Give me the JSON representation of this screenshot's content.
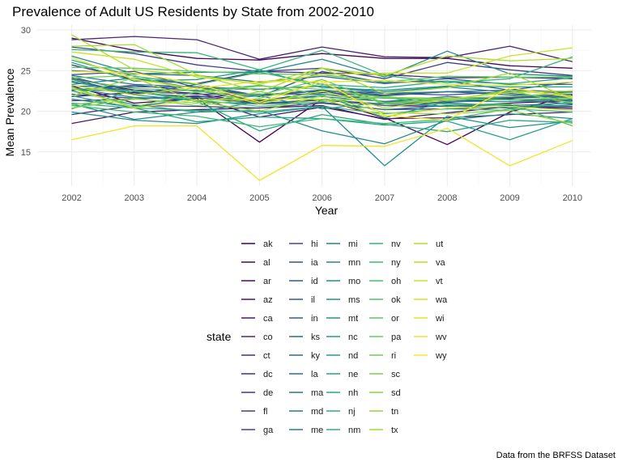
{
  "chart_data": {
    "type": "line",
    "title": "Prevalence of Adult US Residents by State from 2002-2010",
    "xlabel": "Year",
    "ylabel": "Mean Prevalence",
    "x": [
      2002,
      2003,
      2004,
      2005,
      2006,
      2007,
      2008,
      2009,
      2010
    ],
    "x_tick_labels": [
      "2002",
      "2003",
      "2004",
      "2005",
      "2006",
      "2007",
      "2008",
      "2009",
      "2010"
    ],
    "y_ticks": [
      15,
      20,
      25,
      30
    ],
    "y_tick_labels": [
      "15",
      "20",
      "25",
      "30"
    ],
    "xlim": [
      2001.45,
      2010.3
    ],
    "ylim": [
      10.8,
      30.6
    ],
    "grid": true,
    "legend_title": "state",
    "legend_position": "bottom",
    "caption": "Data from the BRFSS Dataset",
    "series": [
      {
        "name": "ak",
        "values": [
          23.1,
          21.0,
          21.6,
          16.2,
          21.5,
          19.2,
          15.9,
          19.9,
          22.0
        ]
      },
      {
        "name": "al",
        "values": [
          29.0,
          27.5,
          26.5,
          26.3,
          27.1,
          26.5,
          26.5,
          25.6,
          25.3
        ]
      },
      {
        "name": "ar",
        "values": [
          24.0,
          22.6,
          22.2,
          20.9,
          21.4,
          20.7,
          20.6,
          21.0,
          21.3
        ]
      },
      {
        "name": "az",
        "values": [
          18.5,
          19.9,
          20.2,
          20.4,
          20.7,
          19.0,
          19.8,
          20.6,
          20.3
        ]
      },
      {
        "name": "ca",
        "values": [
          21.8,
          22.3,
          21.7,
          19.3,
          20.5,
          19.1,
          19.2,
          19.6,
          19.9
        ]
      },
      {
        "name": "co",
        "values": [
          28.8,
          29.2,
          28.8,
          26.4,
          27.9,
          26.7,
          26.6,
          28.0,
          26.1
        ]
      },
      {
        "name": "ct",
        "values": [
          25.7,
          23.9,
          23.4,
          24.9,
          24.7,
          24.5,
          24.1,
          24.2,
          24.0
        ]
      },
      {
        "name": "dc",
        "values": [
          21.3,
          21.5,
          21.9,
          21.0,
          21.4,
          20.9,
          21.1,
          21.5,
          20.9
        ]
      },
      {
        "name": "de",
        "values": [
          19.6,
          20.7,
          20.6,
          20.4,
          21.0,
          20.2,
          20.3,
          20.6,
          20.5
        ]
      },
      {
        "name": "fl",
        "values": [
          22.6,
          23.2,
          22.5,
          21.3,
          22.3,
          21.8,
          21.2,
          21.6,
          21.9
        ]
      },
      {
        "name": "ga",
        "values": [
          27.9,
          27.1,
          25.7,
          24.9,
          25.3,
          24.0,
          26.0,
          25.1,
          24.4
        ]
      },
      {
        "name": "hi",
        "values": [
          22.1,
          21.6,
          21.8,
          22.0,
          22.6,
          22.2,
          22.0,
          22.4,
          22.3
        ]
      },
      {
        "name": "ia",
        "values": [
          23.9,
          22.1,
          23.3,
          21.9,
          22.5,
          21.1,
          21.1,
          21.7,
          22.1
        ]
      },
      {
        "name": "id",
        "values": [
          24.5,
          24.9,
          22.9,
          21.8,
          24.9,
          23.5,
          23.7,
          22.6,
          23.6
        ]
      },
      {
        "name": "il",
        "values": [
          24.2,
          22.4,
          22.6,
          21.1,
          22.5,
          21.9,
          22.4,
          22.2,
          21.5
        ]
      },
      {
        "name": "in",
        "values": [
          23.1,
          23.0,
          23.0,
          21.9,
          22.6,
          22.0,
          22.4,
          22.0,
          21.7
        ]
      },
      {
        "name": "ks",
        "values": [
          23.6,
          22.4,
          22.1,
          22.1,
          22.1,
          21.2,
          21.8,
          21.4,
          21.4
        ]
      },
      {
        "name": "ky",
        "values": [
          25.0,
          24.6,
          24.4,
          23.6,
          24.3,
          23.4,
          24.0,
          23.3,
          23.3
        ]
      },
      {
        "name": "la",
        "values": [
          21.5,
          20.5,
          21.7,
          20.9,
          21.5,
          20.7,
          21.0,
          20.7,
          21.0
        ]
      },
      {
        "name": "ma",
        "values": [
          22.6,
          22.5,
          21.2,
          20.9,
          21.1,
          20.2,
          20.7,
          20.4,
          20.8
        ]
      },
      {
        "name": "md",
        "values": [
          24.4,
          23.3,
          23.0,
          22.7,
          23.1,
          22.2,
          22.4,
          22.6,
          22.4
        ]
      },
      {
        "name": "me",
        "values": [
          22.8,
          21.7,
          21.4,
          21.4,
          21.8,
          21.2,
          21.4,
          21.7,
          21.9
        ]
      },
      {
        "name": "mi",
        "values": [
          23.3,
          24.1,
          22.8,
          22.7,
          23.1,
          22.4,
          23.0,
          22.3,
          22.5
        ]
      },
      {
        "name": "mn",
        "values": [
          26.8,
          24.6,
          24.8,
          24.8,
          26.4,
          24.2,
          27.4,
          24.6,
          24.3
        ]
      },
      {
        "name": "mo",
        "values": [
          20.9,
          19.0,
          19.9,
          20.1,
          17.6,
          16.0,
          18.9,
          19.7,
          19.1
        ]
      },
      {
        "name": "ms",
        "values": [
          19.9,
          18.9,
          18.5,
          19.7,
          20.6,
          13.3,
          19.4,
          18.0,
          18.8
        ]
      },
      {
        "name": "mt",
        "values": [
          22.5,
          20.8,
          19.9,
          21.2,
          22.0,
          19.2,
          21.2,
          21.2,
          21.3
        ]
      },
      {
        "name": "nc",
        "values": [
          23.7,
          22.0,
          21.3,
          21.9,
          20.3,
          21.1,
          20.6,
          20.8,
          20.6
        ]
      },
      {
        "name": "nd",
        "values": [
          26.0,
          23.7,
          23.9,
          25.1,
          22.9,
          22.6,
          23.1,
          23.0,
          23.0
        ]
      },
      {
        "name": "ne",
        "values": [
          21.9,
          20.4,
          18.7,
          19.3,
          19.1,
          18.3,
          18.8,
          16.5,
          19.1
        ]
      },
      {
        "name": "nh",
        "values": [
          20.3,
          22.6,
          21.2,
          17.6,
          19.6,
          18.4,
          17.5,
          18.9,
          18.6
        ]
      },
      {
        "name": "nj",
        "values": [
          26.3,
          24.3,
          23.3,
          24.8,
          23.3,
          22.9,
          23.7,
          23.4,
          24.1
        ]
      },
      {
        "name": "nm",
        "values": [
          21.0,
          20.4,
          20.1,
          19.9,
          20.6,
          19.7,
          20.3,
          20.1,
          21.2
        ]
      },
      {
        "name": "nv",
        "values": [
          27.6,
          27.3,
          27.2,
          25.1,
          27.5,
          24.4,
          23.5,
          24.0,
          26.7
        ]
      },
      {
        "name": "ny",
        "values": [
          20.7,
          19.9,
          19.4,
          18.1,
          19.1,
          18.5,
          19.0,
          20.3,
          19.9
        ]
      },
      {
        "name": "oh",
        "values": [
          23.9,
          22.8,
          22.5,
          23.2,
          22.1,
          21.6,
          21.5,
          21.4,
          21.7
        ]
      },
      {
        "name": "ok",
        "values": [
          22.8,
          22.5,
          21.4,
          20.6,
          21.2,
          21.7,
          20.8,
          20.9,
          18.2
        ]
      },
      {
        "name": "or",
        "values": [
          25.4,
          25.3,
          24.9,
          24.6,
          24.5,
          23.6,
          24.3,
          24.2,
          24.2
        ]
      },
      {
        "name": "pa",
        "values": [
          22.9,
          20.5,
          22.4,
          22.0,
          23.9,
          21.0,
          21.6,
          21.8,
          22.3
        ]
      },
      {
        "name": "ri",
        "values": [
          24.1,
          24.4,
          22.3,
          23.1,
          22.7,
          21.7,
          21.6,
          21.4,
          21.6
        ]
      },
      {
        "name": "sc",
        "values": [
          20.8,
          21.6,
          20.7,
          21.6,
          23.4,
          20.9,
          21.4,
          22.5,
          21.0
        ]
      },
      {
        "name": "sd",
        "values": [
          20.4,
          21.5,
          21.0,
          22.4,
          21.3,
          21.8,
          21.3,
          22.6,
          21.9
        ]
      },
      {
        "name": "tn",
        "values": [
          21.9,
          24.1,
          21.2,
          20.0,
          21.9,
          19.8,
          19.7,
          20.1,
          18.5
        ]
      },
      {
        "name": "tx",
        "values": [
          28.0,
          28.2,
          24.5,
          22.4,
          25.3,
          22.2,
          22.9,
          24.7,
          21.5
        ]
      },
      {
        "name": "ut",
        "values": [
          29.4,
          25.1,
          24.4,
          23.3,
          25.3,
          24.4,
          26.8,
          26.2,
          26.5
        ]
      },
      {
        "name": "va",
        "values": [
          23.2,
          22.0,
          22.9,
          20.9,
          22.5,
          20.4,
          21.5,
          22.3,
          22.5
        ]
      },
      {
        "name": "vt",
        "values": [
          27.3,
          26.4,
          24.2,
          23.4,
          24.5,
          24.7,
          24.7,
          26.8,
          27.8
        ]
      },
      {
        "name": "wa",
        "values": [
          22.8,
          20.4,
          21.4,
          21.5,
          21.5,
          19.4,
          20.4,
          20.6,
          20.1
        ]
      },
      {
        "name": "wi",
        "values": [
          26.6,
          23.9,
          22.8,
          23.7,
          23.6,
          23.8,
          23.3,
          23.2,
          23.6
        ]
      },
      {
        "name": "wv",
        "values": [
          16.5,
          18.2,
          18.2,
          11.5,
          15.8,
          15.7,
          17.9,
          13.3,
          16.4
        ]
      },
      {
        "name": "wy",
        "values": [
          24.9,
          24.7,
          23.4,
          21.1,
          23.7,
          19.5,
          18.9,
          22.9,
          21.7
        ]
      }
    ]
  }
}
